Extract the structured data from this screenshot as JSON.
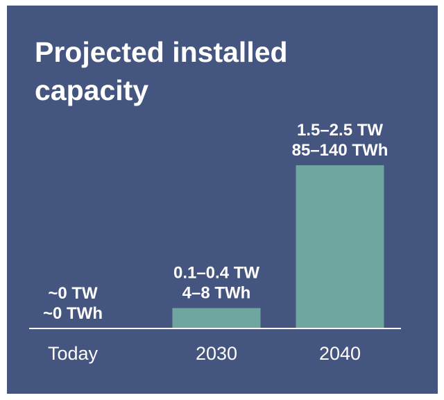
{
  "chart_data": {
    "type": "bar",
    "title": "Projected installed capacity",
    "categories": [
      "Today",
      "2030",
      "2040"
    ],
    "series": [
      {
        "name": "",
        "values": [
          0,
          0.25,
          2.0
        ]
      }
    ],
    "unit": "TW",
    "data_labels": [
      {
        "line1": "~0 TW",
        "line2": "~0 TWh"
      },
      {
        "line1": "0.1–0.4 TW",
        "line2": "4–8 TWh"
      },
      {
        "line1": "1.5–2.5 TW",
        "line2": "85–140 TWh"
      }
    ],
    "xlabel": "",
    "ylabel": "",
    "ylim": [
      0,
      2.0
    ],
    "grid": false,
    "legend": "none"
  },
  "colors": {
    "background": "#44557f",
    "bar": "#6fa6a0",
    "text": "#ffffff",
    "axis": "#ffffff"
  }
}
